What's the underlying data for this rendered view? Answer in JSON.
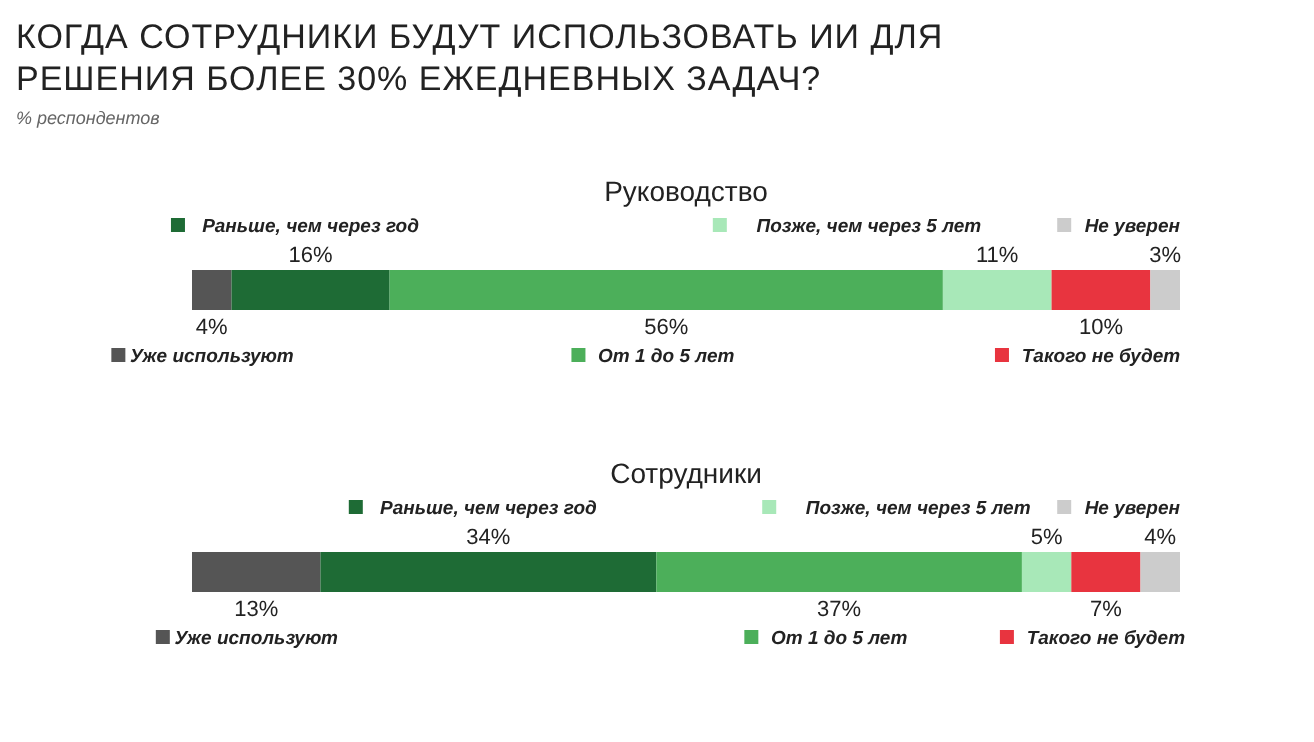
{
  "chart_data": {
    "type": "bar",
    "orientation": "horizontal",
    "stacked": true,
    "title": "КОГДА СОТРУДНИКИ БУДУТ ИСПОЛЬЗОВАТЬ ИИ ДЛЯ РЕШЕНИЯ БОЛЕЕ 30% ЕЖЕДНЕВНЫХ ЗАДАЧ?",
    "subtitle": "% респондентов",
    "categories": [
      "Руководство",
      "Сотрудники"
    ],
    "tick_labels": "y",
    "legend": "top",
    "series": [
      {
        "name": "Уже используют",
        "color": "#555555",
        "values": [
          4,
          13
        ],
        "value_labels": [
          "4%",
          "13%"
        ]
      },
      {
        "name": "Раньше, чем через год",
        "color": "#1e6b35",
        "values": [
          16,
          34
        ],
        "value_labels": [
          "16%",
          "34%"
        ]
      },
      {
        "name": "От 1 до 5 лет",
        "color": "#4caf5a",
        "values": [
          56,
          37
        ],
        "value_labels": [
          "56%",
          "37%"
        ]
      },
      {
        "name": "Позже, чем через 5 лет",
        "color": "#a8e8b8",
        "values": [
          11,
          5
        ],
        "value_labels": [
          "11%",
          "5%"
        ]
      },
      {
        "name": "Такого не будет",
        "color": "#e8343f",
        "values": [
          10,
          7
        ],
        "value_labels": [
          "10%",
          "7%"
        ]
      },
      {
        "name": "Не уверен",
        "color": "#cccccc",
        "values": [
          3,
          4
        ],
        "value_labels": [
          "3%",
          "4%"
        ]
      }
    ]
  }
}
